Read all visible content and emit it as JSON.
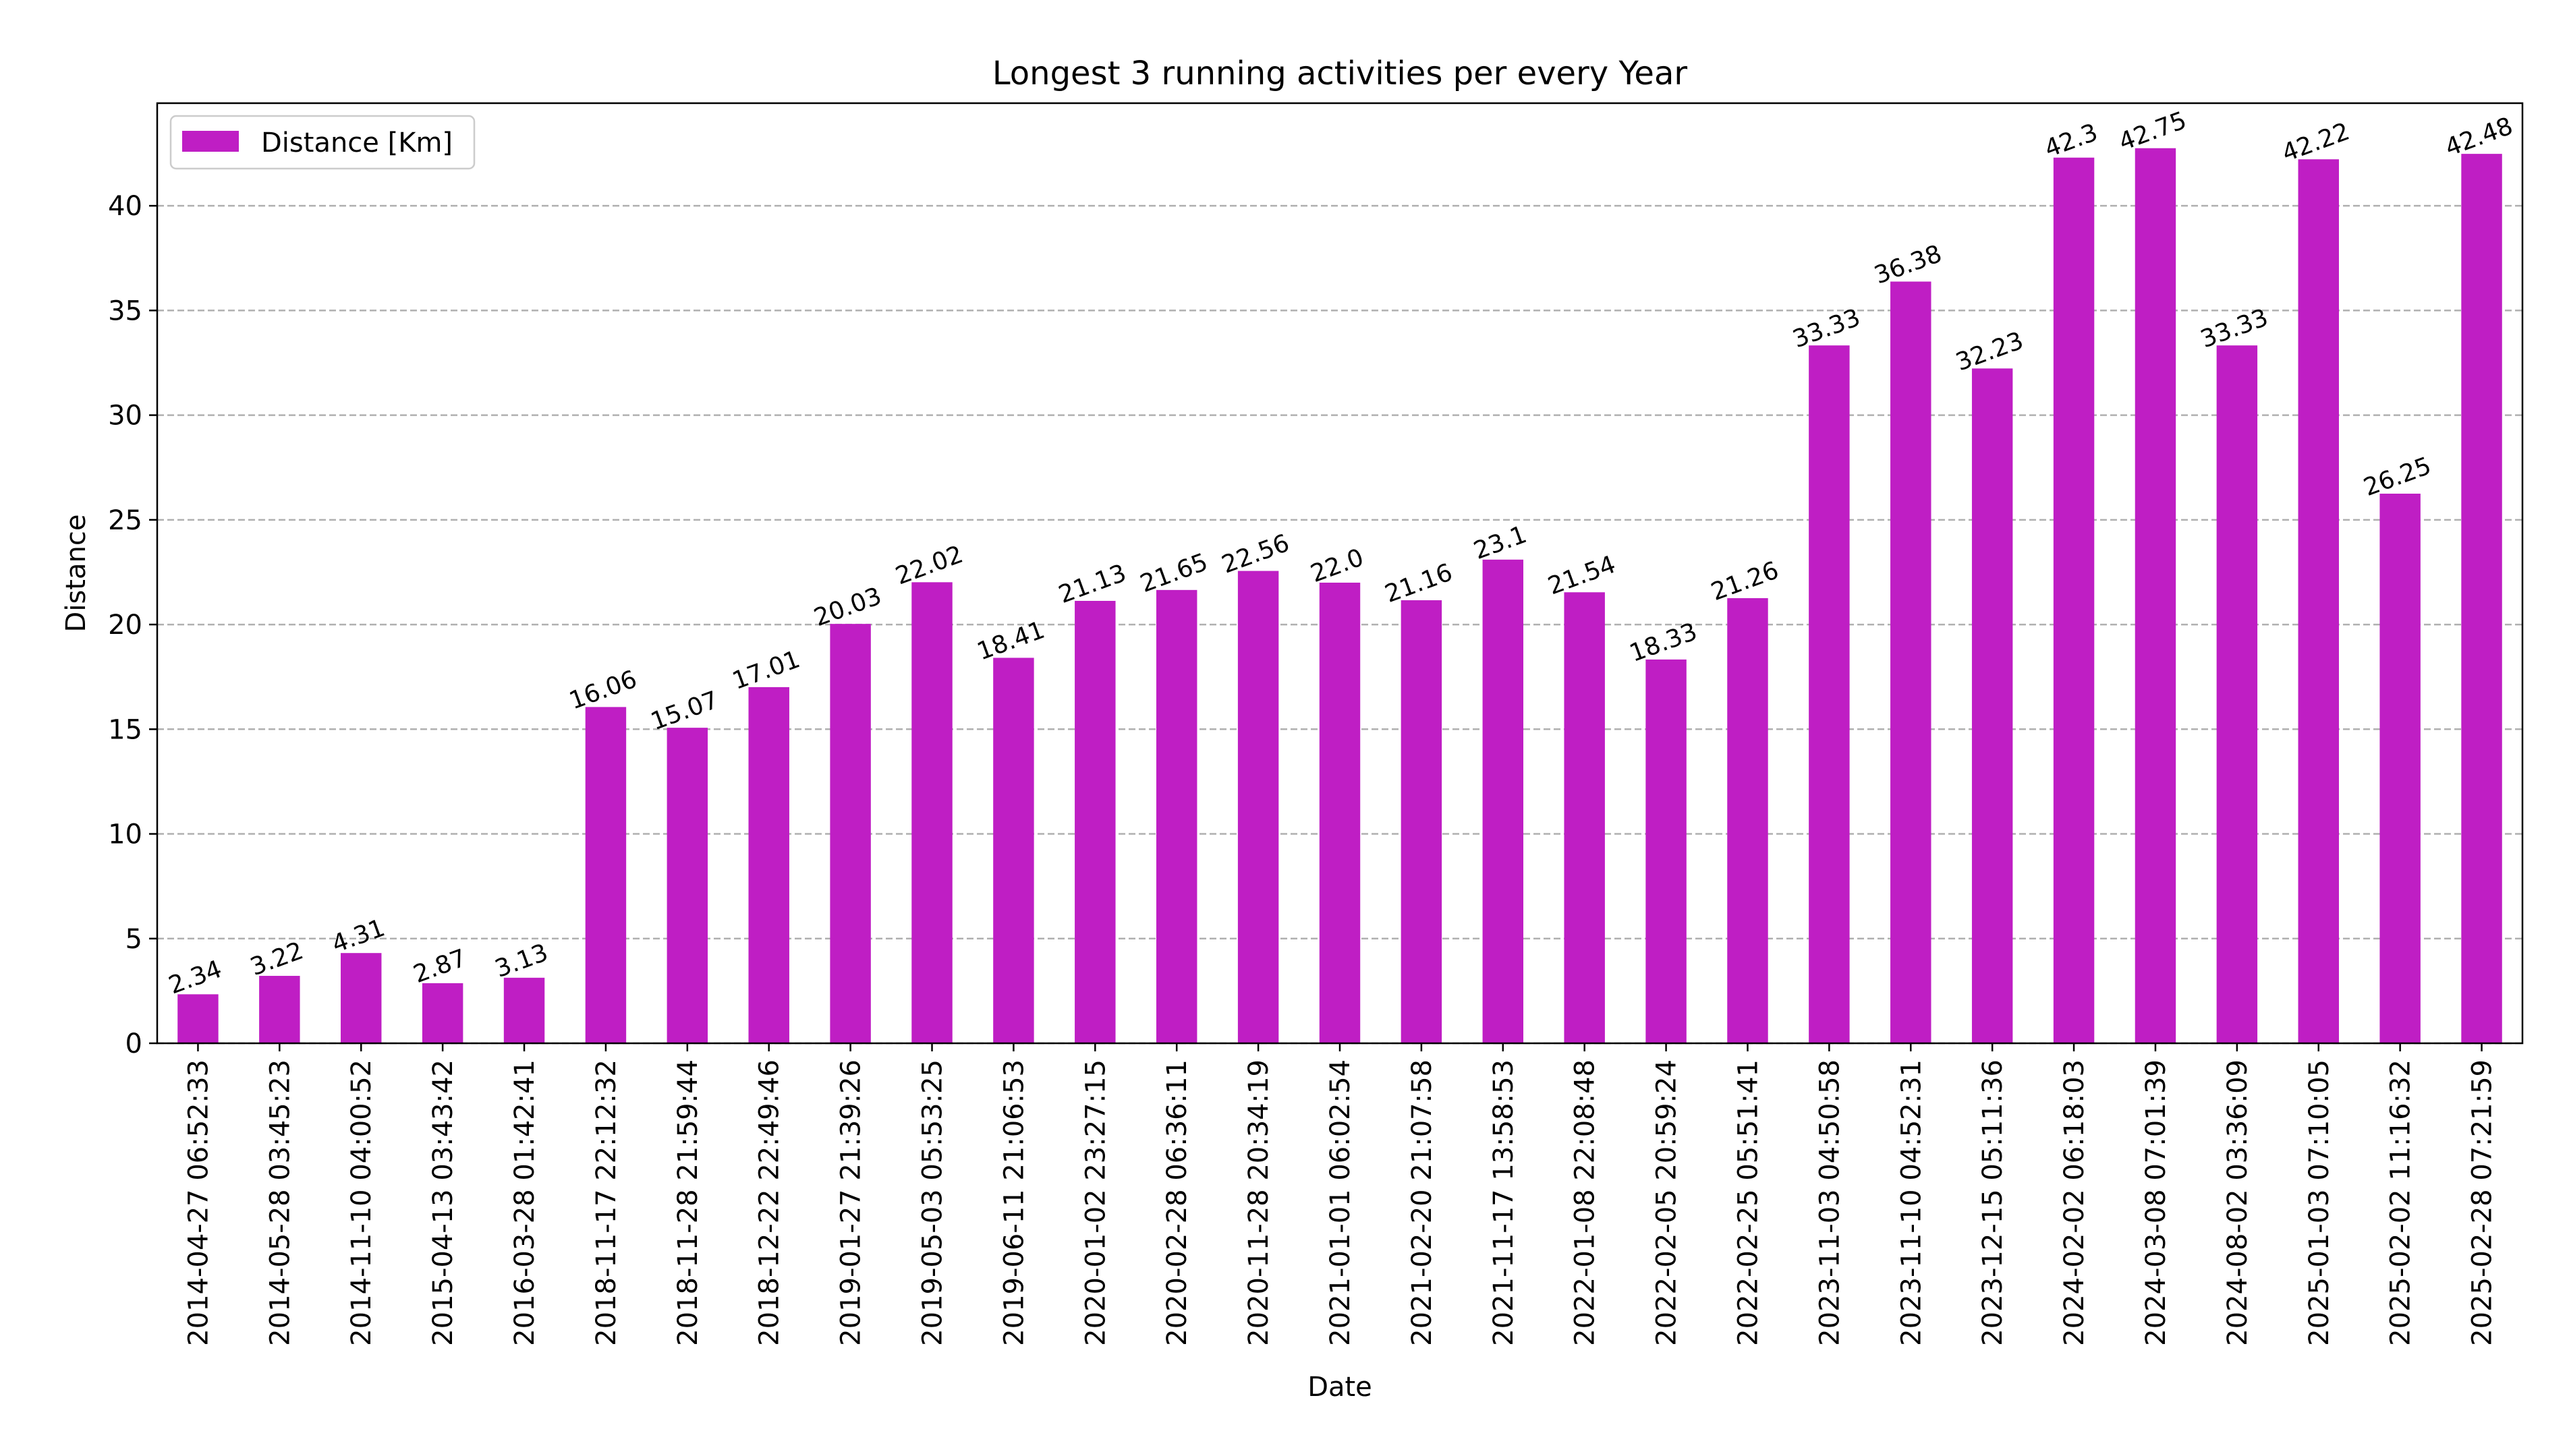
{
  "chart_data": {
    "type": "bar",
    "title": "Longest 3 running activities per every Year",
    "xlabel": "Date",
    "ylabel": "Distance",
    "ylim": [
      0,
      44.9
    ],
    "yticks": [
      0,
      5,
      10,
      15,
      20,
      25,
      30,
      35,
      40
    ],
    "grid": "horizontal dashed",
    "legend_position": "top-left",
    "bar_color": "#bf1ec4",
    "categories": [
      "2014-04-27 06:52:33",
      "2014-05-28 03:45:23",
      "2014-11-10 04:00:52",
      "2015-04-13 03:43:42",
      "2016-03-28 01:42:41",
      "2018-11-17 22:12:32",
      "2018-11-28 21:59:44",
      "2018-12-22 22:49:46",
      "2019-01-27 21:39:26",
      "2019-05-03 05:53:25",
      "2019-06-11 21:06:53",
      "2020-01-02 23:27:15",
      "2020-02-28 06:36:11",
      "2020-11-28 20:34:19",
      "2021-01-01 06:02:54",
      "2021-02-20 21:07:58",
      "2021-11-17 13:58:53",
      "2022-01-08 22:08:48",
      "2022-02-05 20:59:24",
      "2022-02-25 05:51:41",
      "2023-11-03 04:50:58",
      "2023-11-10 04:52:31",
      "2023-12-15 05:11:36",
      "2024-02-02 06:18:03",
      "2024-03-08 07:01:39",
      "2024-08-02 03:36:09",
      "2025-01-03 07:10:05",
      "2025-02-02 11:16:32",
      "2025-02-28 07:21:59"
    ],
    "series": [
      {
        "name": "Distance [Km]",
        "values": [
          2.34,
          3.22,
          4.31,
          2.87,
          3.13,
          16.06,
          15.07,
          17.01,
          20.03,
          22.02,
          18.41,
          21.13,
          21.65,
          22.56,
          22.0,
          21.16,
          23.1,
          21.54,
          18.33,
          21.26,
          33.33,
          36.38,
          32.23,
          42.3,
          42.75,
          33.33,
          42.22,
          26.25,
          42.48
        ],
        "labels": [
          "2.34",
          "3.22",
          "4.31",
          "2.87",
          "3.13",
          "16.06",
          "15.07",
          "17.01",
          "20.03",
          "22.02",
          "18.41",
          "21.13",
          "21.65",
          "22.56",
          "22.0",
          "21.16",
          "23.1",
          "21.54",
          "18.33",
          "21.26",
          "33.33",
          "36.38",
          "32.23",
          "42.3",
          "42.75",
          "33.33",
          "42.22",
          "26.25",
          "42.48"
        ]
      }
    ]
  }
}
